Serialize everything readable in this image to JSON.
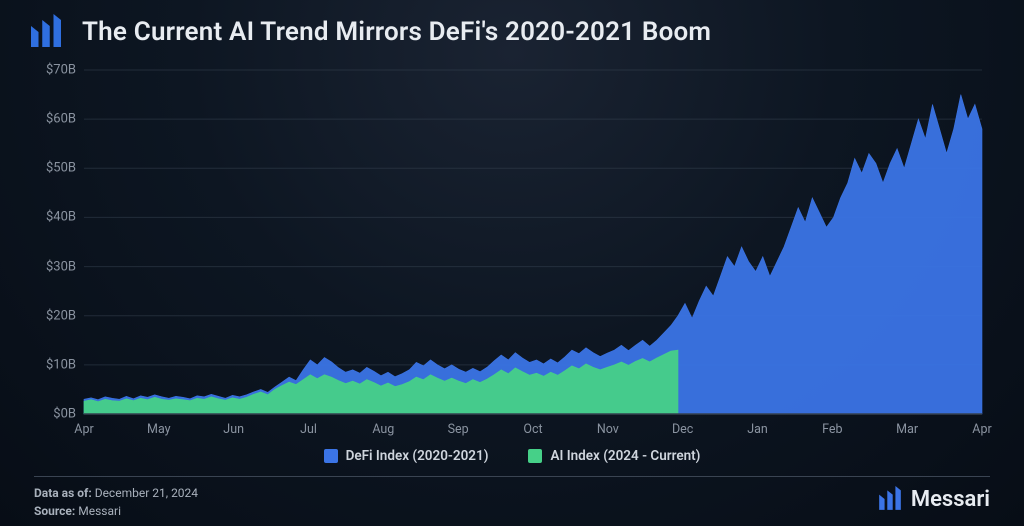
{
  "header": {
    "title": "The Current AI Trend Mirrors DeFi's 2020-2021 Boom",
    "logo_color": "#2f6fe0"
  },
  "chart": {
    "type": "area",
    "background": "transparent",
    "grid_color": "#35414f",
    "axis_label_color": "#8a93a0",
    "ylim": [
      0,
      70
    ],
    "ytick_step": 10,
    "ytick_prefix": "$",
    "ytick_suffix": "B",
    "x_categories": [
      "Apr",
      "May",
      "Jun",
      "Jul",
      "Aug",
      "Sep",
      "Oct",
      "Nov",
      "Dec",
      "Jan",
      "Feb",
      "Mar",
      "Apr"
    ],
    "series": [
      {
        "name": "DeFi Index (2020-2021)",
        "color": "#3b74e6",
        "fill_opacity": 0.95,
        "values": [
          3.0,
          3.3,
          2.9,
          3.5,
          3.2,
          3.0,
          3.6,
          3.1,
          3.7,
          3.4,
          3.9,
          3.5,
          3.2,
          3.6,
          3.4,
          3.1,
          3.7,
          3.5,
          4.0,
          3.6,
          3.2,
          3.8,
          3.5,
          3.9,
          4.5,
          5.0,
          4.4,
          5.5,
          6.5,
          7.5,
          6.8,
          9.0,
          11.0,
          10.0,
          11.5,
          10.6,
          9.4,
          8.5,
          9.0,
          8.3,
          9.5,
          8.7,
          7.8,
          8.5,
          7.6,
          8.2,
          9.0,
          10.5,
          9.8,
          11.0,
          10.0,
          9.2,
          10.0,
          9.1,
          8.5,
          9.3,
          8.6,
          9.5,
          10.8,
          12.0,
          11.0,
          12.5,
          11.4,
          10.5,
          11.0,
          10.2,
          11.2,
          10.4,
          11.6,
          13.0,
          12.3,
          13.5,
          12.5,
          11.7,
          12.4,
          13.0,
          14.0,
          12.9,
          14.0,
          15.0,
          13.8,
          15.0,
          16.5,
          18.0,
          20.0,
          22.5,
          19.5,
          23.0,
          26.0,
          24.0,
          28.0,
          32.0,
          30.0,
          34.0,
          31.0,
          29.0,
          32.0,
          28.0,
          31.0,
          34.0,
          38.0,
          42.0,
          39.0,
          44.0,
          41.0,
          38.0,
          40.0,
          44.0,
          47.0,
          52.0,
          49.0,
          53.0,
          51.0,
          47.0,
          51.0,
          54.0,
          50.0,
          55.0,
          60.0,
          56.0,
          63.0,
          58.0,
          53.0,
          58.0,
          65.0,
          60.0,
          63.0,
          58.0
        ]
      },
      {
        "name": "AI Index (2024 - Current)",
        "color": "#46d088",
        "fill_opacity": 0.95,
        "cutoff_index": 84,
        "values": [
          2.6,
          2.9,
          2.5,
          3.0,
          2.7,
          2.6,
          3.1,
          2.7,
          3.2,
          2.9,
          3.4,
          3.0,
          2.8,
          3.1,
          2.9,
          2.7,
          3.2,
          3.0,
          3.5,
          3.1,
          2.8,
          3.3,
          3.0,
          3.4,
          4.0,
          4.5,
          3.9,
          5.0,
          5.8,
          6.5,
          6.0,
          7.0,
          8.0,
          7.2,
          8.0,
          7.5,
          6.8,
          6.2,
          6.7,
          6.1,
          7.0,
          6.4,
          5.7,
          6.3,
          5.6,
          6.0,
          6.6,
          7.5,
          7.0,
          8.0,
          7.3,
          6.7,
          7.3,
          6.7,
          6.2,
          7.0,
          6.4,
          7.1,
          8.0,
          9.0,
          8.2,
          9.4,
          8.6,
          7.9,
          8.3,
          7.7,
          8.5,
          7.9,
          8.8,
          9.8,
          9.2,
          10.2,
          9.5,
          9.0,
          9.5,
          10.0,
          10.6,
          9.9,
          10.7,
          11.3,
          10.6,
          11.4,
          12.1,
          12.8,
          13.0
        ]
      }
    ],
    "legend_items": [
      {
        "label": "DeFi Index (2020-2021)",
        "color": "#3b74e6"
      },
      {
        "label": "AI Index (2024 - Current)",
        "color": "#46d088"
      }
    ]
  },
  "footer": {
    "data_asof_label": "Data as of:",
    "data_asof_value": "December 21, 2024",
    "source_label": "Source:",
    "source_value": "Messari",
    "brand_text": "Messari",
    "brand_color": "#3b74e6"
  }
}
